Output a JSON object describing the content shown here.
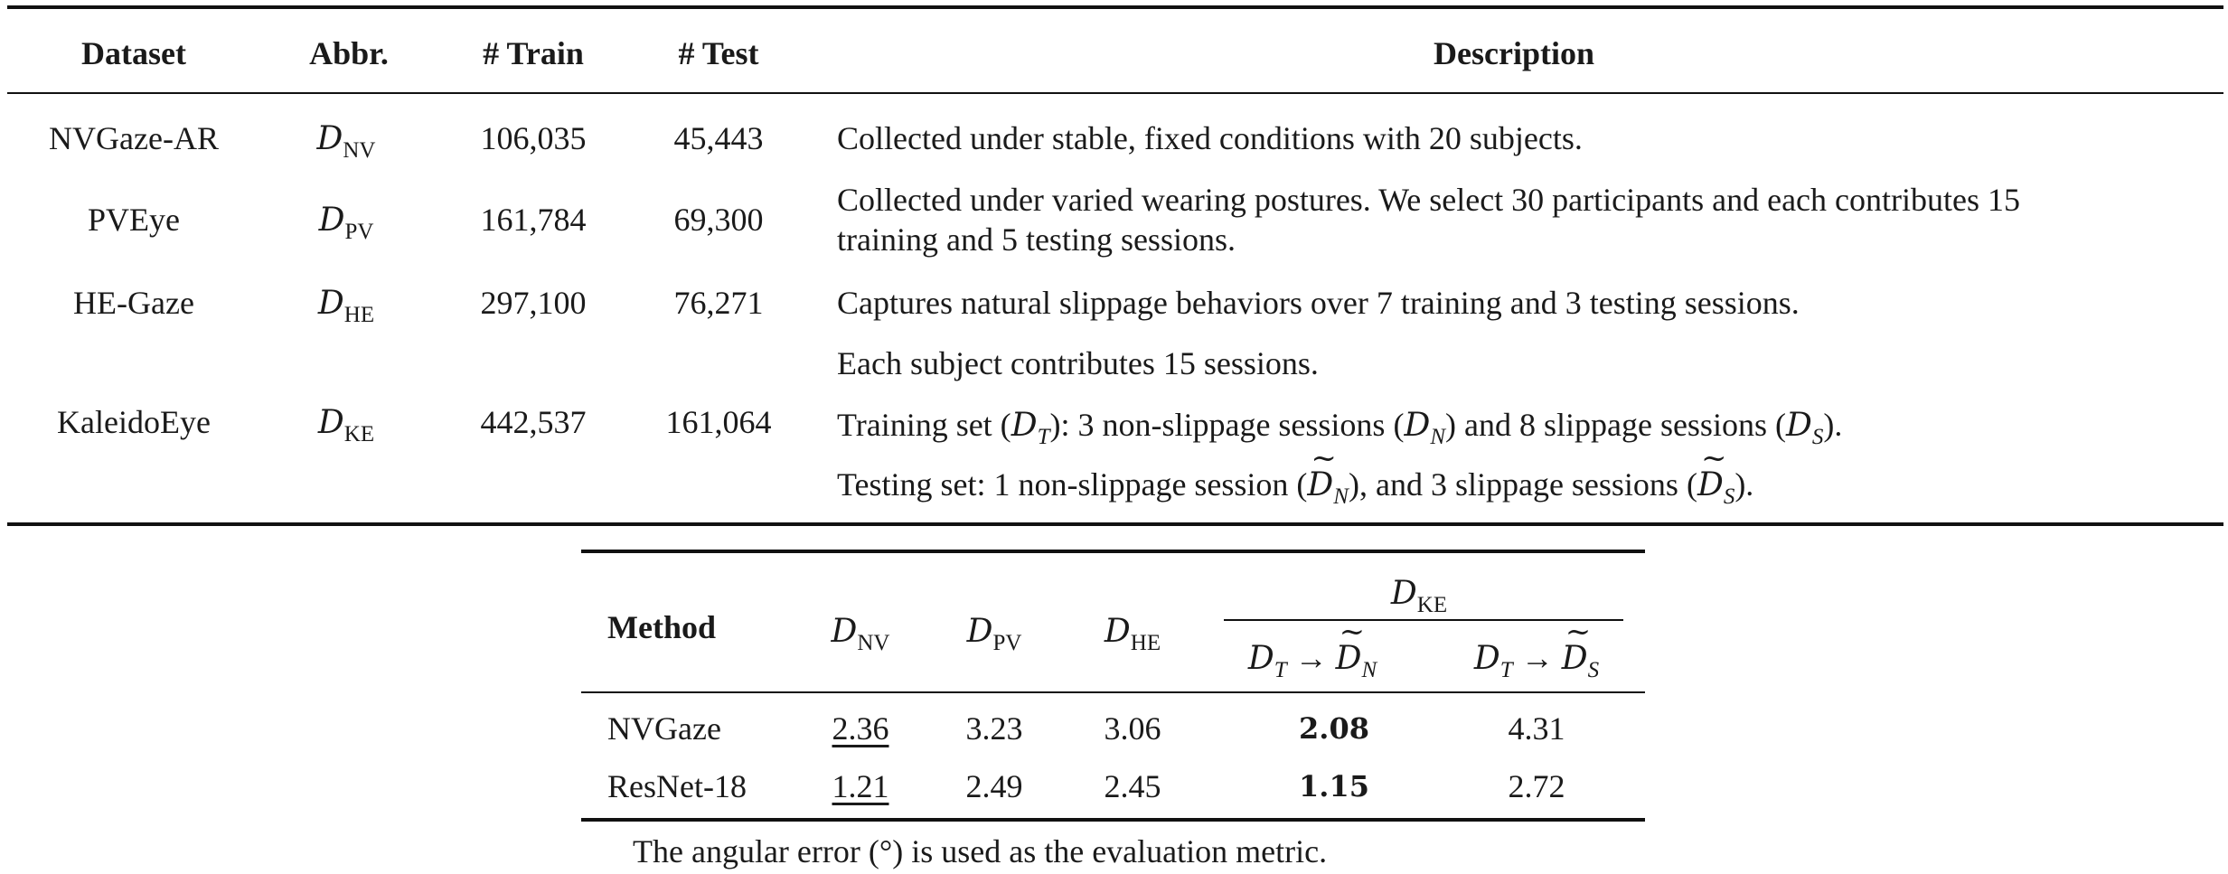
{
  "table1": {
    "headers": {
      "dataset": "Dataset",
      "abbr": "Abbr.",
      "train": "# Train",
      "test": "# Test",
      "description": "Description"
    },
    "rows": [
      {
        "dataset": "NVGaze-AR",
        "abbr_base": "D",
        "abbr_sub": "NV",
        "train": "106,035",
        "test": "45,443",
        "desc": [
          "Collected under stable, fixed conditions with 20 subjects."
        ]
      },
      {
        "dataset": "PVEye",
        "abbr_base": "D",
        "abbr_sub": "PV",
        "train": "161,784",
        "test": "69,300",
        "desc": [
          "Collected under varied wearing postures. We select 30 participants and each contributes 15",
          "training and 5 testing sessions."
        ]
      },
      {
        "dataset": "HE-Gaze",
        "abbr_base": "D",
        "abbr_sub": "HE",
        "train": "297,100",
        "test": "76,271",
        "desc": [
          "Captures natural slippage behaviors over 7 training and 3 testing sessions."
        ]
      },
      {
        "dataset": "KaleidoEye",
        "abbr_base": "D",
        "abbr_sub": "KE",
        "train": "442,537",
        "test": "161,064",
        "desc": [
          "Each subject contributes 15 sessions."
        ]
      }
    ],
    "ke_train_line": {
      "a": "Training set (",
      "b": "): 3 non-slippage sessions (",
      "c": ") and 8 slippage sessions (",
      "d": ").",
      "sub_t": "T",
      "sub_n": "N",
      "sub_s": "S"
    },
    "ke_test_line": {
      "a": "Testing set: 1 non-slippage session (",
      "b": "), and 3 slippage sessions (",
      "c": ")."
    }
  },
  "table2": {
    "headers": {
      "method": "Method",
      "nv": "NV",
      "pv": "PV",
      "he": "HE",
      "ke": "KE",
      "d_base": "D",
      "dt": "D",
      "t_sub": "T",
      "arrow": "→",
      "n_sub": "N",
      "s_sub": "S"
    },
    "rows": [
      {
        "method": "NVGaze",
        "nv": "2.36",
        "pv": "3.23",
        "he": "3.06",
        "n": "2.08",
        "s": "4.31"
      },
      {
        "method": "ResNet-18",
        "nv": "1.21",
        "pv": "2.49",
        "he": "2.45",
        "n": "1.15",
        "s": "2.72"
      }
    ],
    "caption": "The angular error (°) is used as the evaluation metric."
  }
}
